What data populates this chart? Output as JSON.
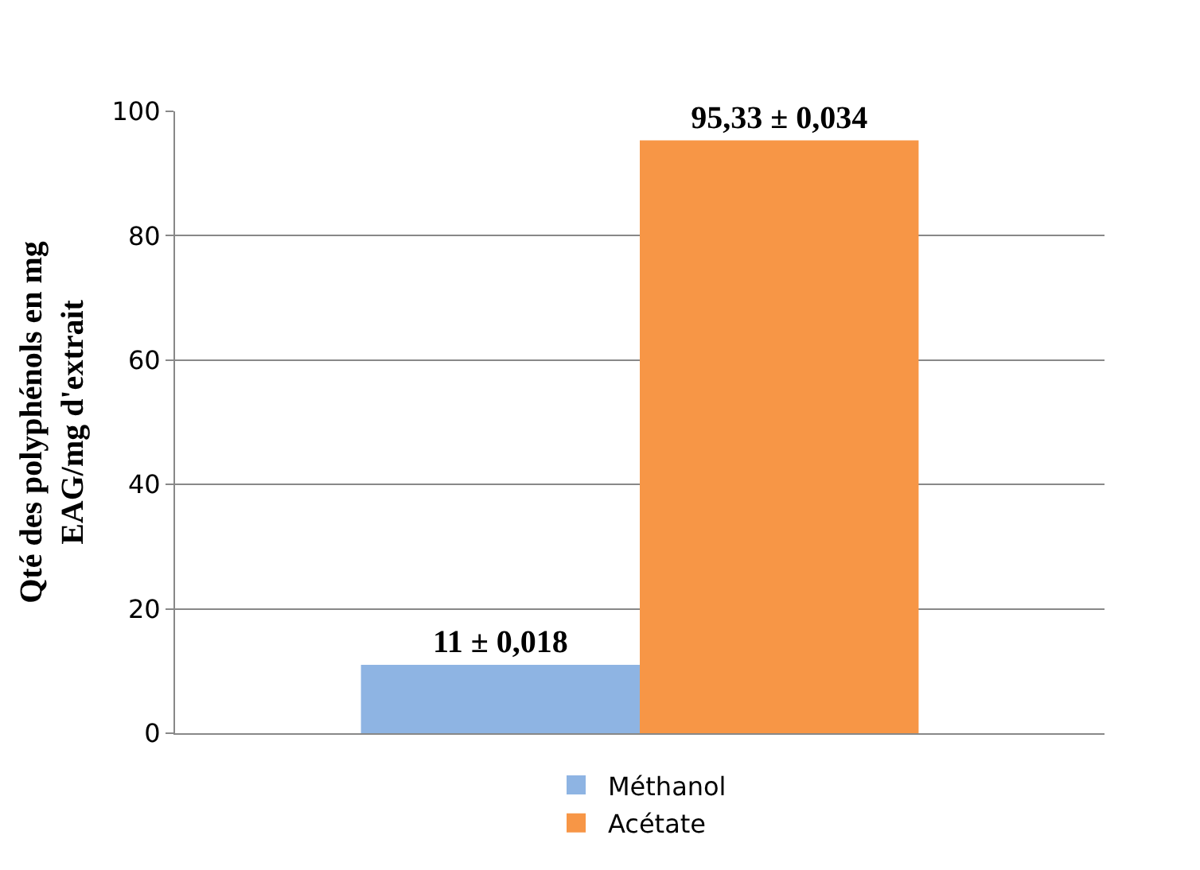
{
  "chart_data": {
    "type": "bar",
    "ylabel": "Qté des polyphénols en mg EAG/mg d'extrait",
    "categories": [
      null
    ],
    "series": [
      {
        "name": "Méthanol",
        "color": "#8eb4e3",
        "values": [
          11
        ],
        "value_labels": [
          "11 ± 0,018"
        ]
      },
      {
        "name": "Acétate",
        "color": "#f79646",
        "values": [
          95.33
        ],
        "value_labels": [
          "95,33 ± 0,034"
        ]
      }
    ],
    "ylim": [
      0,
      100
    ],
    "yticks": [
      0,
      20,
      40,
      60,
      80,
      100
    ],
    "grid": "y",
    "legend": "bottom"
  }
}
